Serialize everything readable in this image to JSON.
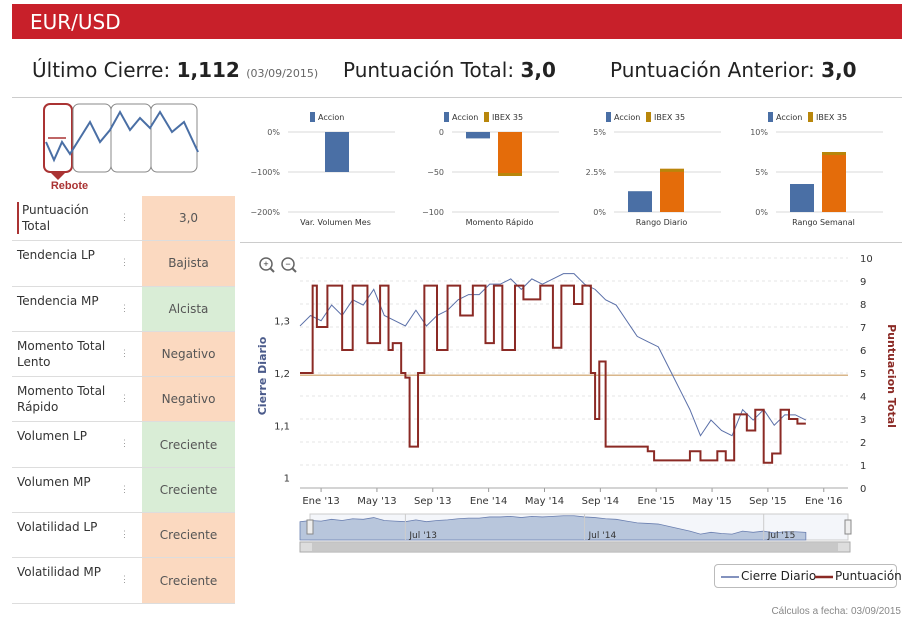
{
  "header": {
    "title": "EUR/USD"
  },
  "summary": {
    "last_close_label": "Último Cierre:",
    "last_close_value": "1,112",
    "last_close_date": "(03/09/2015)",
    "total_score_label": "Puntuación Total:",
    "total_score_value": "3,0",
    "prev_score_label": "Puntuación Anterior:",
    "prev_score_value": "3,0"
  },
  "pattern": {
    "label": "Rebote"
  },
  "sidebar": {
    "rows": [
      {
        "label": "Puntuación Total",
        "value": "3,0",
        "color": "#fbd9c0"
      },
      {
        "label": "Tendencia LP",
        "value": "Bajista",
        "color": "#fbd9c0"
      },
      {
        "label": "Tendencia MP",
        "value": "Alcista",
        "color": "#d9edd6"
      },
      {
        "label": "Momento Total Lento",
        "value": "Negativo",
        "color": "#fbd9c0"
      },
      {
        "label": "Momento Total Rápido",
        "value": "Negativo",
        "color": "#fbd9c0"
      },
      {
        "label": "Volumen LP",
        "value": "Creciente",
        "color": "#d9edd6"
      },
      {
        "label": "Volumen MP",
        "value": "Creciente",
        "color": "#d9edd6"
      },
      {
        "label": "Volatilidad LP",
        "value": "Creciente",
        "color": "#fbd9c0"
      },
      {
        "label": "Volatilidad MP",
        "value": "Creciente",
        "color": "#fbd9c0"
      }
    ]
  },
  "mini_charts": [
    {
      "type": "bar",
      "title": "Var. Volumen Mes",
      "legend": [
        "Accion"
      ],
      "ticks": [
        "0%",
        "−100%",
        "−200%"
      ],
      "ylim": [
        -200,
        0
      ],
      "series": [
        {
          "name": "Accion",
          "values": [
            -100
          ]
        }
      ]
    },
    {
      "type": "bar",
      "title": "Momento Rápido",
      "legend": [
        "Accion",
        "IBEX 35"
      ],
      "ticks": [
        "0",
        "−50",
        "−100"
      ],
      "ylim": [
        -100,
        0
      ],
      "series": [
        {
          "name": "Accion",
          "values": [
            -8
          ]
        },
        {
          "name": "IBEX 35",
          "values": [
            -55
          ]
        }
      ]
    },
    {
      "type": "bar",
      "title": "Rango Diario",
      "legend": [
        "Accion",
        "IBEX 35"
      ],
      "ticks": [
        "5%",
        "2.5%",
        "0%"
      ],
      "ylim": [
        0,
        5
      ],
      "series": [
        {
          "name": "Accion",
          "values": [
            1.3
          ]
        },
        {
          "name": "IBEX 35",
          "values": [
            2.7
          ]
        }
      ]
    },
    {
      "type": "bar",
      "title": "Rango Semanal",
      "legend": [
        "Accion",
        "IBEX 35"
      ],
      "ticks": [
        "10%",
        "5%",
        "0%"
      ],
      "ylim": [
        0,
        10
      ],
      "series": [
        {
          "name": "Accion",
          "values": [
            3.5
          ]
        },
        {
          "name": "IBEX 35",
          "values": [
            7.5
          ]
        }
      ]
    }
  ],
  "colors": {
    "accion": "#4a6fa5",
    "ibex": "#e46c0a",
    "ibex_legend": "#b8860b",
    "price": "#5a6fa8",
    "score": "#8b2a25"
  },
  "chart_data": {
    "type": "line",
    "ylabel_left": "Cierre Diario",
    "ylabel_right": "Puntuacion Total",
    "yticks_left": [
      "1,3",
      "1,2",
      "1,1",
      "1"
    ],
    "ylim_left": [
      0.98,
      1.42
    ],
    "yticks_right": [
      "10",
      "9",
      "8",
      "7",
      "6",
      "5",
      "4",
      "3",
      "2",
      "1",
      "0"
    ],
    "ylim_right": [
      0,
      10
    ],
    "xticks": [
      "Ene '13",
      "May '13",
      "Sep '13",
      "Ene '14",
      "May '14",
      "Sep '14",
      "Ene '15",
      "May '15",
      "Sep '15",
      "Ene '16"
    ],
    "navigator_ticks": [
      "Jul '13",
      "Jul '14",
      "Jul '15"
    ],
    "reference_line": 4.9,
    "legend": [
      "Cierre Diario",
      "Puntuación"
    ],
    "series": [
      {
        "name": "Cierre Diario",
        "values": [
          [
            0,
            1.29
          ],
          [
            0.5,
            1.31
          ],
          [
            1,
            1.3
          ],
          [
            1.5,
            1.33
          ],
          [
            2,
            1.31
          ],
          [
            2.5,
            1.34
          ],
          [
            3,
            1.33
          ],
          [
            3.5,
            1.36
          ],
          [
            4,
            1.31
          ],
          [
            4.5,
            1.3
          ],
          [
            5,
            1.29
          ],
          [
            5.5,
            1.32
          ],
          [
            6,
            1.29
          ],
          [
            6.5,
            1.31
          ],
          [
            7,
            1.32
          ],
          [
            7.5,
            1.34
          ],
          [
            8,
            1.35
          ],
          [
            8.5,
            1.35
          ],
          [
            9,
            1.37
          ],
          [
            9.5,
            1.37
          ],
          [
            10,
            1.38
          ],
          [
            10.5,
            1.36
          ],
          [
            11,
            1.38
          ],
          [
            11.5,
            1.37
          ],
          [
            12,
            1.38
          ],
          [
            12.5,
            1.39
          ],
          [
            13,
            1.39
          ],
          [
            13.5,
            1.37
          ],
          [
            14,
            1.36
          ],
          [
            14.5,
            1.34
          ],
          [
            15,
            1.33
          ],
          [
            15.5,
            1.3
          ],
          [
            16,
            1.27
          ],
          [
            16.5,
            1.26
          ],
          [
            17,
            1.25
          ],
          [
            17.5,
            1.21
          ],
          [
            18,
            1.17
          ],
          [
            18.5,
            1.13
          ],
          [
            19,
            1.08
          ],
          [
            19.5,
            1.11
          ],
          [
            20,
            1.09
          ],
          [
            20.5,
            1.08
          ],
          [
            21,
            1.13
          ],
          [
            21.5,
            1.11
          ],
          [
            22,
            1.13
          ],
          [
            22.5,
            1.1
          ],
          [
            23,
            1.12
          ],
          [
            23.5,
            1.12
          ],
          [
            24,
            1.11
          ]
        ]
      },
      {
        "name": "Puntuación",
        "values": [
          [
            0,
            5
          ],
          [
            0.6,
            8.8
          ],
          [
            0.8,
            7
          ],
          [
            1.3,
            8.8
          ],
          [
            2,
            6
          ],
          [
            2.5,
            8.8
          ],
          [
            3.2,
            6.3
          ],
          [
            3.8,
            8.8
          ],
          [
            4.2,
            6
          ],
          [
            4.4,
            6.3
          ],
          [
            4.8,
            5
          ],
          [
            5.0,
            4.8
          ],
          [
            5.2,
            1.8
          ],
          [
            5.6,
            5
          ],
          [
            5.9,
            8.8
          ],
          [
            6.5,
            6
          ],
          [
            7,
            8.8
          ],
          [
            7.6,
            7.5
          ],
          [
            8.2,
            8.8
          ],
          [
            8.8,
            6.3
          ],
          [
            9.2,
            8.8
          ],
          [
            9.6,
            6
          ],
          [
            10.2,
            8.8
          ],
          [
            10.6,
            8.2
          ],
          [
            11.4,
            8.8
          ],
          [
            12,
            6.1
          ],
          [
            12.4,
            8.8
          ],
          [
            13,
            8
          ],
          [
            13.4,
            8.8
          ],
          [
            13.8,
            5
          ],
          [
            14,
            3
          ],
          [
            14.2,
            5.5
          ],
          [
            14.5,
            1.8
          ],
          [
            16.5,
            1.6
          ],
          [
            16.8,
            1.2
          ],
          [
            18.5,
            1.6
          ],
          [
            19,
            1.2
          ],
          [
            19.8,
            1.6
          ],
          [
            20.2,
            1.2
          ],
          [
            20.6,
            3.2
          ],
          [
            21.2,
            2.5
          ],
          [
            21.6,
            3.4
          ],
          [
            22,
            1.1
          ],
          [
            22.4,
            1.5
          ],
          [
            22.8,
            3.4
          ],
          [
            23.2,
            3
          ],
          [
            23.6,
            2.8
          ]
        ]
      }
    ]
  },
  "footer": {
    "text": "Cálculos a fecha: 03/09/2015"
  }
}
